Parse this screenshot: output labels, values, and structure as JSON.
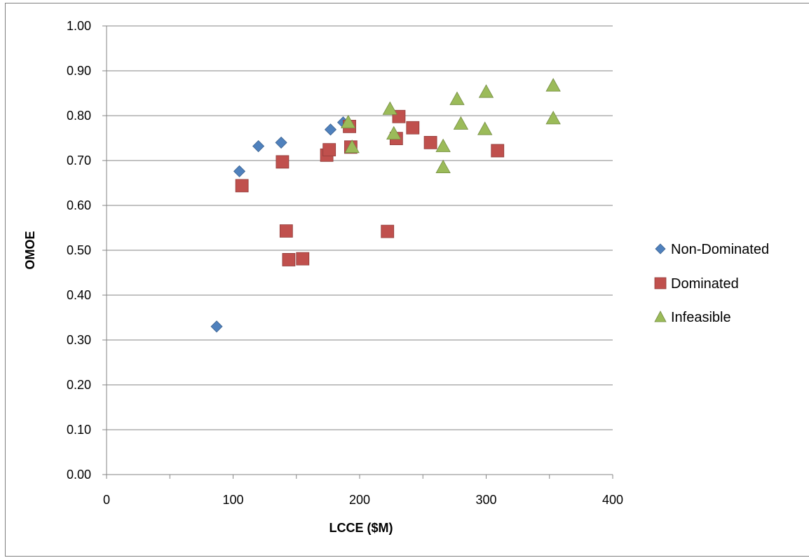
{
  "chart_data": {
    "type": "scatter",
    "title": "",
    "xlabel": "LCCE ($M)",
    "ylabel": "OMOE",
    "xlim": [
      0,
      400
    ],
    "ylim": [
      0,
      1
    ],
    "x_ticks": [
      0,
      100,
      200,
      300,
      400
    ],
    "x_tick_labels": [
      "0",
      "100",
      "200",
      "300",
      "400"
    ],
    "y_ticks": [
      0,
      0.1,
      0.2,
      0.3,
      0.4,
      0.5,
      0.6,
      0.7,
      0.8,
      0.9,
      1.0
    ],
    "y_tick_labels": [
      "0.00",
      "0.10",
      "0.20",
      "0.30",
      "0.40",
      "0.50",
      "0.60",
      "0.70",
      "0.80",
      "0.90",
      "1.00"
    ],
    "x_minor_ticks": [
      50,
      150,
      250,
      350
    ],
    "grid": "horizontal",
    "legend_position": "right",
    "series": [
      {
        "name": "Non-Dominated",
        "marker": "diamond",
        "color": "#4f81bd",
        "points": [
          [
            87,
            0.33
          ],
          [
            105,
            0.676
          ],
          [
            120,
            0.732
          ],
          [
            138,
            0.74
          ],
          [
            177,
            0.769
          ],
          [
            187,
            0.785
          ]
        ]
      },
      {
        "name": "Dominated",
        "marker": "square",
        "color": "#c0504d",
        "points": [
          [
            107,
            0.644
          ],
          [
            139,
            0.697
          ],
          [
            142,
            0.543
          ],
          [
            144,
            0.479
          ],
          [
            155,
            0.481
          ],
          [
            174,
            0.712
          ],
          [
            176,
            0.724
          ],
          [
            192,
            0.776
          ],
          [
            193,
            0.73
          ],
          [
            222,
            0.542
          ],
          [
            229,
            0.749
          ],
          [
            231,
            0.798
          ],
          [
            242,
            0.773
          ],
          [
            256,
            0.74
          ],
          [
            309,
            0.722
          ]
        ]
      },
      {
        "name": "Infeasible",
        "marker": "triangle",
        "color": "#9bbb59",
        "points": [
          [
            191,
            0.785
          ],
          [
            194,
            0.73
          ],
          [
            224,
            0.815
          ],
          [
            227,
            0.76
          ],
          [
            266,
            0.732
          ],
          [
            266,
            0.685
          ],
          [
            277,
            0.837
          ],
          [
            280,
            0.782
          ],
          [
            299,
            0.77
          ],
          [
            300,
            0.853
          ],
          [
            353,
            0.867
          ],
          [
            353,
            0.794
          ]
        ]
      }
    ]
  }
}
